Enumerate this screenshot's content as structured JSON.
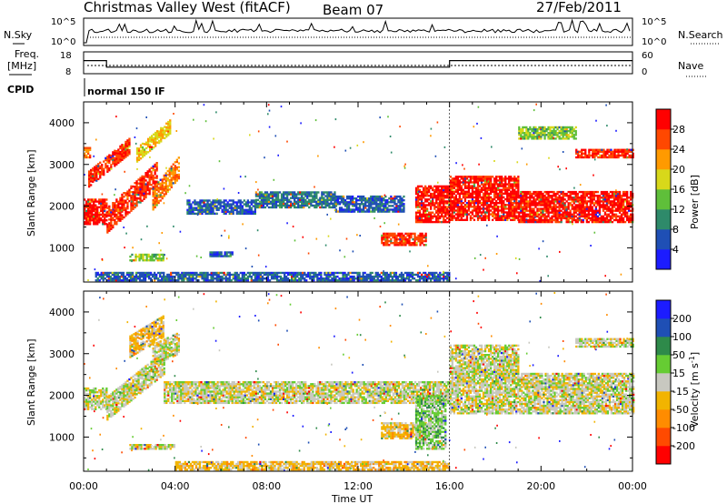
{
  "header": {
    "title": "Christmas Valley West (fitACF)",
    "beam": "Beam 07",
    "date": "27/Feb/2011"
  },
  "strips": {
    "nsky": {
      "label": "N.Sky",
      "ticks": [
        "10^5",
        "10^0"
      ]
    },
    "nsearch": {
      "label": "N.Search"
    },
    "freq": {
      "label_top": "Freq.",
      "label_unit": "[MHz]",
      "ticks": [
        "18",
        "8"
      ]
    },
    "nave": {
      "label": "Nave",
      "ticks": [
        "60",
        "0"
      ]
    },
    "cpid": {
      "label": "CPID",
      "value": "normal 150 IF"
    }
  },
  "axes": {
    "x_label": "Time UT",
    "x_ticks": [
      "00:00",
      "04:00",
      "08:00",
      "12:00",
      "16:00",
      "20:00",
      "00:00"
    ],
    "y_label": "Slant Range [km]",
    "y_ticks": [
      "1000",
      "2000",
      "3000",
      "4000"
    ]
  },
  "colorbars": {
    "power": {
      "label": "Power [dB]",
      "ticks": [
        "4",
        "8",
        "12",
        "16",
        "20",
        "24",
        "28"
      ]
    },
    "velocity": {
      "label_main": "Velocity [m s",
      "label_sup": "-1",
      "label_close": "]",
      "ticks": [
        "200",
        "100",
        "50",
        "15",
        "-15",
        "-50",
        "-100",
        "-200"
      ]
    }
  },
  "chart_data": {
    "type": "heatmap",
    "x_range_hours": [
      0,
      24
    ],
    "y_range_km": [
      180,
      4500
    ],
    "panels": [
      {
        "id": "power",
        "value_range_db": [
          0,
          30
        ],
        "colors": [
          "#1c1cff",
          "#1f4fb5",
          "#2e8a6a",
          "#5fbf3a",
          "#d8d81a",
          "#ff9a00",
          "#ff4800",
          "#ff0000"
        ],
        "regions": [
          {
            "t0": 0.0,
            "t1": 1.0,
            "r0": 1550,
            "r1": 2150,
            "dr": 0,
            "level": 28
          },
          {
            "t0": 0.0,
            "t1": 0.3,
            "r0": 3150,
            "r1": 3400,
            "dr": 0,
            "level": 22
          },
          {
            "t0": 0.2,
            "t1": 2.0,
            "r0": 2450,
            "r1": 2850,
            "dr": 800,
            "level": 26
          },
          {
            "t0": 1.0,
            "t1": 3.2,
            "r0": 1350,
            "r1": 1950,
            "dr": 1100,
            "level": 26
          },
          {
            "t0": 2.3,
            "t1": 3.8,
            "r0": 3050,
            "r1": 3400,
            "dr": 700,
            "level": 18
          },
          {
            "t0": 3.0,
            "t1": 4.2,
            "r0": 1900,
            "r1": 2400,
            "dr": 800,
            "level": 22
          },
          {
            "t0": 2.0,
            "t1": 3.5,
            "r0": 680,
            "r1": 820,
            "dr": 0,
            "level": 14
          },
          {
            "t0": 5.5,
            "t1": 6.5,
            "r0": 780,
            "r1": 900,
            "dr": 0,
            "level": 6
          },
          {
            "t0": 4.5,
            "t1": 7.5,
            "r0": 1800,
            "r1": 2150,
            "dr": 0,
            "level": 6
          },
          {
            "t0": 7.5,
            "t1": 11.0,
            "r0": 1950,
            "r1": 2350,
            "dr": 0,
            "level": 8
          },
          {
            "t0": 11.0,
            "t1": 14.0,
            "r0": 1850,
            "r1": 2250,
            "dr": 0,
            "level": 6
          },
          {
            "t0": 13.0,
            "t1": 15.0,
            "r0": 1050,
            "r1": 1350,
            "dr": 0,
            "level": 26
          },
          {
            "t0": 14.5,
            "t1": 16.0,
            "r0": 1600,
            "r1": 2500,
            "dr": 0,
            "level": 28
          },
          {
            "t0": 16.0,
            "t1": 19.0,
            "r0": 1650,
            "r1": 2700,
            "dr": 0,
            "level": 28
          },
          {
            "t0": 19.0,
            "t1": 24.0,
            "r0": 1600,
            "r1": 2350,
            "dr": 0,
            "level": 28
          },
          {
            "t0": 21.5,
            "t1": 24.0,
            "r0": 3150,
            "r1": 3350,
            "dr": 0,
            "level": 26
          },
          {
            "t0": 19.0,
            "t1": 21.5,
            "r0": 3600,
            "r1": 3900,
            "dr": 0,
            "level": 14
          },
          {
            "t0": 0.5,
            "t1": 16.0,
            "r0": 200,
            "r1": 400,
            "dr": 0,
            "level": 6
          }
        ]
      },
      {
        "id": "velocity",
        "value_range_ms": [
          -200,
          200
        ],
        "colors": [
          "#ff0000",
          "#ff4a00",
          "#ff8c00",
          "#f2b400",
          "#c8c8c0",
          "#66cc33",
          "#2e8a4a",
          "#1f4fb5",
          "#1c1cff"
        ],
        "regions": [
          {
            "t0": 0.0,
            "t1": 1.0,
            "r0": 1650,
            "r1": 2150,
            "dr": 0,
            "level": 0
          },
          {
            "t0": 1.0,
            "t1": 3.5,
            "r0": 1400,
            "r1": 1950,
            "dr": 1100,
            "level": 0
          },
          {
            "t0": 3.0,
            "t1": 4.2,
            "r0": 2700,
            "r1": 3200,
            "dr": 300,
            "level": 0
          },
          {
            "t0": 2.0,
            "t1": 3.5,
            "r0": 2900,
            "r1": 3400,
            "dr": 500,
            "level": -40
          },
          {
            "t0": 3.5,
            "t1": 16.0,
            "r0": 1800,
            "r1": 2300,
            "dr": 0,
            "level": 0
          },
          {
            "t0": 13.0,
            "t1": 15.0,
            "r0": 950,
            "r1": 1350,
            "dr": 0,
            "level": -40
          },
          {
            "t0": 14.5,
            "t1": 15.8,
            "r0": 700,
            "r1": 2000,
            "dr": 0,
            "level": 40
          },
          {
            "t0": 16.0,
            "t1": 24.0,
            "r0": 1550,
            "r1": 2500,
            "dr": 0,
            "level": 0
          },
          {
            "t0": 16.0,
            "t1": 19.0,
            "r0": 2500,
            "r1": 3200,
            "dr": 0,
            "level": 0
          },
          {
            "t0": 21.5,
            "t1": 24.0,
            "r0": 3150,
            "r1": 3350,
            "dr": 0,
            "level": 0
          },
          {
            "t0": 2.0,
            "t1": 4.0,
            "r0": 700,
            "r1": 830,
            "dr": 0,
            "level": 0
          },
          {
            "t0": 4.0,
            "t1": 16.0,
            "r0": 200,
            "r1": 420,
            "dr": 0,
            "level": -40
          }
        ]
      }
    ],
    "frequency_mhz": {
      "segments": [
        {
          "t0": 0.0,
          "t1": 1.0,
          "value": 14
        },
        {
          "t0": 1.0,
          "t1": 16.0,
          "value": 11
        },
        {
          "t0": 16.0,
          "t1": 24.0,
          "value": 14
        }
      ]
    }
  }
}
